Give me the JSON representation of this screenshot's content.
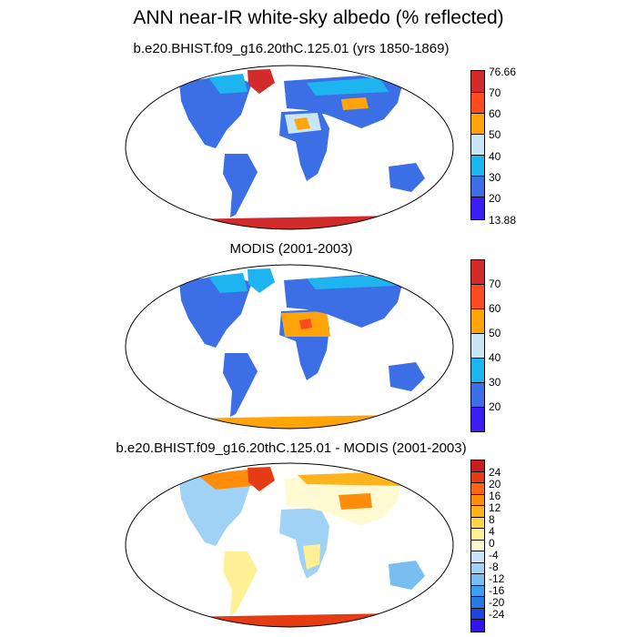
{
  "main_title": "ANN near-IR white-sky albedo (% reflected)",
  "panels": [
    {
      "title": "b.e20.BHIST.f09_g16.20thC.125.01 (yrs 1850-1869)",
      "colorbar": {
        "colors": [
          "#d22b2b",
          "#ff4b1d",
          "#ffa50a",
          "#c8e6f5",
          "#1eb4f0",
          "#3c6ee6",
          "#3c1ef5"
        ],
        "ticks": [
          "76.66",
          "70",
          "60",
          "50",
          "40",
          "30",
          "20",
          "13.88"
        ]
      }
    },
    {
      "title": "MODIS (2001-2003)",
      "colorbar": {
        "colors": [
          "#d22b2b",
          "#ff4b1d",
          "#ffa50a",
          "#c8e6f5",
          "#1eb4f0",
          "#3c6ee6",
          "#3c1ef5"
        ],
        "ticks": [
          "70",
          "60",
          "50",
          "40",
          "30",
          "20"
        ]
      }
    },
    {
      "title": "b.e20.BHIST.f09_g16.20thC.125.01 - MODIS (2001-2003)",
      "colorbar": {
        "colors": [
          "#c81e1e",
          "#e63c14",
          "#ff6414",
          "#ff8c0a",
          "#ffb41e",
          "#ffd250",
          "#fff096",
          "#fffad2",
          "#c8e6fa",
          "#a0d2f5",
          "#78bef0",
          "#3ca0f0",
          "#2878e6",
          "#1e46dc",
          "#3214f0"
        ],
        "ticks": [
          "24",
          "20",
          "16",
          "12",
          "8",
          "4",
          "0",
          "-4",
          "-8",
          "-12",
          "-16",
          "-20",
          "-24"
        ]
      }
    }
  ]
}
